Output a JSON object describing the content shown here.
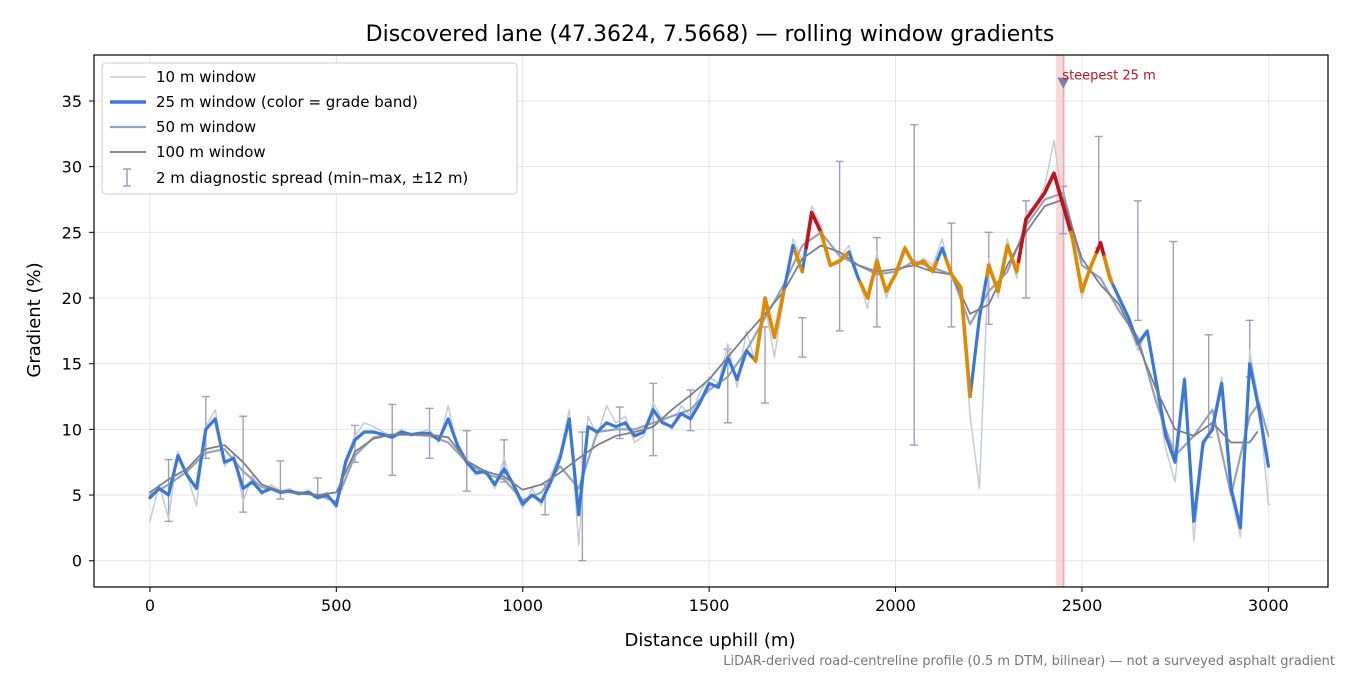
{
  "chart_data": {
    "type": "line",
    "title": "Discovered lane (47.3624, 7.5668) — rolling window gradients",
    "xlabel": "Distance uphill (m)",
    "ylabel": "Gradient (%)",
    "xlim": [
      -150,
      3160
    ],
    "ylim": [
      -2,
      38.5
    ],
    "xticks": [
      0,
      500,
      1000,
      1500,
      2000,
      2500,
      3000
    ],
    "yticks": [
      0,
      5,
      10,
      15,
      20,
      25,
      30,
      35
    ],
    "grid": true,
    "legend_position": "upper-left",
    "footer": "LiDAR-derived road-centreline profile (0.5 m DTM, bilinear) — not a surveyed asphalt gradient",
    "annotation": {
      "text": "steepest 25 m",
      "x": 2450,
      "y": 36.4,
      "band": [
        2430,
        2455
      ]
    },
    "grade_band_colors": {
      "lt20": "#3a78d8",
      "20to25": "#e08a00",
      "ge25": "#c1121f"
    },
    "series": [
      {
        "name": "10 m window",
        "color": "#c5ccd6",
        "width": 1.5,
        "x": [
          0,
          25,
          50,
          75,
          100,
          125,
          150,
          175,
          200,
          225,
          250,
          275,
          300,
          325,
          350,
          375,
          400,
          425,
          450,
          475,
          500,
          525,
          550,
          575,
          600,
          625,
          650,
          675,
          700,
          725,
          750,
          775,
          800,
          825,
          850,
          875,
          900,
          925,
          950,
          975,
          1000,
          1025,
          1050,
          1075,
          1100,
          1125,
          1150,
          1175,
          1200,
          1225,
          1250,
          1275,
          1300,
          1325,
          1350,
          1375,
          1400,
          1425,
          1450,
          1475,
          1500,
          1525,
          1550,
          1575,
          1600,
          1625,
          1650,
          1675,
          1700,
          1725,
          1750,
          1775,
          1800,
          1825,
          1850,
          1875,
          1900,
          1925,
          1950,
          1975,
          2000,
          2025,
          2050,
          2075,
          2100,
          2125,
          2150,
          2175,
          2200,
          2225,
          2250,
          2275,
          2300,
          2325,
          2350,
          2375,
          2400,
          2425,
          2450,
          2475,
          2500,
          2525,
          2550,
          2575,
          2600,
          2625,
          2650,
          2675,
          2700,
          2725,
          2750,
          2775,
          2800,
          2825,
          2850,
          2875,
          2900,
          2925,
          2950,
          2975,
          3000,
          3005
        ],
        "y": [
          3.0,
          5.8,
          3.2,
          8.3,
          6.5,
          4.2,
          10.2,
          11.5,
          7.2,
          8.0,
          4.5,
          6.5,
          5.0,
          5.8,
          5.3,
          5.5,
          5.0,
          5.4,
          4.7,
          5.2,
          4.0,
          7.8,
          9.5,
          10.5,
          10.2,
          9.8,
          9.5,
          10.0,
          9.5,
          9.8,
          10.0,
          9.0,
          11.8,
          8.6,
          7.5,
          6.5,
          6.8,
          5.5,
          7.8,
          5.5,
          4.0,
          5.5,
          4.2,
          6.5,
          8.2,
          11.5,
          1.2,
          11.0,
          9.5,
          11.8,
          10.5,
          11.0,
          9.0,
          9.5,
          12.0,
          10.8,
          10.0,
          11.8,
          11.0,
          12.8,
          14.0,
          13.5,
          16.5,
          13.2,
          17.5,
          15.0,
          19.5,
          15.5,
          20.0,
          24.5,
          22.8,
          27.0,
          25.5,
          22.5,
          23.0,
          24.0,
          21.5,
          19.2,
          23.5,
          20.0,
          21.8,
          24.0,
          22.5,
          23.0,
          22.5,
          24.5,
          21.5,
          20.5,
          11.0,
          5.5,
          23.0,
          20.0,
          24.5,
          21.5,
          26.5,
          27.0,
          28.5,
          32.0,
          27.0,
          25.0,
          20.0,
          22.5,
          24.0,
          22.0,
          19.5,
          18.0,
          16.0,
          17.5,
          13.0,
          8.5,
          6.0,
          14.0,
          1.5,
          8.5,
          10.5,
          14.0,
          5.0,
          1.8,
          16.0,
          12.0,
          4.3,
          4.3
        ]
      },
      {
        "name": "25 m window (color = grade band)",
        "color": "#3a78d8",
        "width": 3.2,
        "x": [
          0,
          25,
          50,
          75,
          100,
          125,
          150,
          175,
          200,
          225,
          250,
          275,
          300,
          325,
          350,
          375,
          400,
          425,
          450,
          475,
          500,
          525,
          550,
          575,
          600,
          625,
          650,
          675,
          700,
          725,
          750,
          775,
          800,
          825,
          850,
          875,
          900,
          925,
          950,
          975,
          1000,
          1025,
          1050,
          1075,
          1100,
          1125,
          1150,
          1175,
          1200,
          1225,
          1250,
          1275,
          1300,
          1325,
          1350,
          1375,
          1400,
          1425,
          1450,
          1475,
          1500,
          1525,
          1550,
          1575,
          1600,
          1625,
          1650,
          1675,
          1700,
          1725,
          1750,
          1775,
          1800,
          1825,
          1850,
          1875,
          1900,
          1925,
          1950,
          1975,
          2000,
          2025,
          2050,
          2075,
          2100,
          2125,
          2150,
          2175,
          2200,
          2225,
          2250,
          2275,
          2300,
          2325,
          2350,
          2375,
          2400,
          2425,
          2450,
          2475,
          2500,
          2525,
          2550,
          2575,
          2600,
          2625,
          2650,
          2675,
          2700,
          2725,
          2750,
          2775,
          2800,
          2825,
          2850,
          2875,
          2900,
          2925,
          2950,
          2975,
          3000
        ],
        "y": [
          4.8,
          5.5,
          5.0,
          8.0,
          6.5,
          5.5,
          10.0,
          10.8,
          7.5,
          7.8,
          5.5,
          6.0,
          5.2,
          5.5,
          5.2,
          5.3,
          5.1,
          5.2,
          4.8,
          5.0,
          4.2,
          7.5,
          9.2,
          9.8,
          9.8,
          9.6,
          9.4,
          9.8,
          9.6,
          9.7,
          9.7,
          9.2,
          10.8,
          8.8,
          7.5,
          6.7,
          6.8,
          5.8,
          7.0,
          5.8,
          4.3,
          5.0,
          4.5,
          6.0,
          7.8,
          10.8,
          3.5,
          10.2,
          9.8,
          10.5,
          10.2,
          10.5,
          9.5,
          9.8,
          11.5,
          10.5,
          10.2,
          11.2,
          10.8,
          12.0,
          13.5,
          13.2,
          15.5,
          13.8,
          16.0,
          15.2,
          20.0,
          17.0,
          20.5,
          24.0,
          22.0,
          26.5,
          25.0,
          22.5,
          22.8,
          23.5,
          21.5,
          20.0,
          22.8,
          20.5,
          21.8,
          23.8,
          22.5,
          22.8,
          22.0,
          23.8,
          21.8,
          20.8,
          12.5,
          18.5,
          22.5,
          20.5,
          24.0,
          22.0,
          26.0,
          27.0,
          28.0,
          29.5,
          27.0,
          24.5,
          20.5,
          22.5,
          24.2,
          21.5,
          20.0,
          18.5,
          16.5,
          17.5,
          13.5,
          9.5,
          7.5,
          13.8,
          3.0,
          9.0,
          10.0,
          13.5,
          5.5,
          2.5,
          15.0,
          11.5,
          7.2
        ]
      },
      {
        "name": "50 m window",
        "color": "#98a4b5",
        "width": 2.2,
        "x": [
          0,
          50,
          100,
          150,
          200,
          250,
          300,
          350,
          400,
          450,
          500,
          550,
          600,
          650,
          700,
          750,
          800,
          850,
          900,
          950,
          1000,
          1050,
          1100,
          1150,
          1200,
          1250,
          1300,
          1350,
          1400,
          1450,
          1500,
          1550,
          1600,
          1650,
          1700,
          1750,
          1800,
          1850,
          1900,
          1950,
          2000,
          2050,
          2100,
          2150,
          2200,
          2250,
          2300,
          2350,
          2400,
          2450,
          2500,
          2550,
          2600,
          2650,
          2700,
          2750,
          2800,
          2850,
          2900,
          2950,
          2975,
          3000
        ],
        "y": [
          5.0,
          5.8,
          6.8,
          8.2,
          8.5,
          6.8,
          5.6,
          5.3,
          5.2,
          5.0,
          4.5,
          8.0,
          9.4,
          9.6,
          9.6,
          9.5,
          9.0,
          7.5,
          6.6,
          6.2,
          4.6,
          5.2,
          7.2,
          5.5,
          9.8,
          10.0,
          10.0,
          10.5,
          11.0,
          11.5,
          13.0,
          14.0,
          16.0,
          18.5,
          21.0,
          24.0,
          25.0,
          23.2,
          22.5,
          21.8,
          22.0,
          22.8,
          22.3,
          21.8,
          18.0,
          20.5,
          22.0,
          25.5,
          27.5,
          28.0,
          22.5,
          21.5,
          19.0,
          17.0,
          12.0,
          8.0,
          9.5,
          11.5,
          5.0,
          11.0,
          12.0,
          9.5
        ]
      },
      {
        "name": "100 m window",
        "color": "#7a808a",
        "width": 1.8,
        "x": [
          0,
          50,
          100,
          150,
          200,
          250,
          300,
          350,
          400,
          450,
          500,
          550,
          600,
          650,
          700,
          750,
          800,
          850,
          900,
          950,
          1000,
          1050,
          1100,
          1150,
          1200,
          1250,
          1300,
          1350,
          1400,
          1450,
          1500,
          1550,
          1600,
          1650,
          1700,
          1750,
          1800,
          1850,
          1900,
          1950,
          2000,
          2050,
          2100,
          2150,
          2200,
          2250,
          2300,
          2350,
          2400,
          2450,
          2500,
          2550,
          2600,
          2650,
          2700,
          2750,
          2800,
          2850,
          2900,
          2950,
          2970
        ],
        "y": [
          5.2,
          6.2,
          7.0,
          8.5,
          8.8,
          7.5,
          5.8,
          5.3,
          5.1,
          5.0,
          5.2,
          8.3,
          9.3,
          9.6,
          9.6,
          9.6,
          9.4,
          7.6,
          6.8,
          6.4,
          5.4,
          5.8,
          6.7,
          7.8,
          8.8,
          9.5,
          9.8,
          10.2,
          11.5,
          12.6,
          13.8,
          15.5,
          17.2,
          18.8,
          20.5,
          23.0,
          24.0,
          23.5,
          22.5,
          22.0,
          22.2,
          22.5,
          22.0,
          21.8,
          18.8,
          19.5,
          22.5,
          25.0,
          27.0,
          27.5,
          23.0,
          21.0,
          19.5,
          16.5,
          13.0,
          10.0,
          9.5,
          10.5,
          9.0,
          9.0,
          9.8
        ]
      }
    ],
    "band_segments": [
      {
        "band": "20to25",
        "x": [
          1620,
          1700,
          1730,
          1750
        ]
      },
      {
        "band": "ge25",
        "x": [
          1760,
          1800
        ]
      },
      {
        "band": "20to25",
        "x": [
          1800,
          1870,
          1905,
          2110
        ]
      },
      {
        "band": "20to25",
        "x": [
          2135,
          2200,
          2245,
          2330
        ]
      },
      {
        "band": "ge25",
        "x": [
          2330,
          2470
        ]
      },
      {
        "band": "20to25",
        "x": [
          2470,
          2540
        ]
      },
      {
        "band": "ge25",
        "x": [
          2540,
          2560
        ]
      },
      {
        "band": "20to25",
        "x": [
          2560,
          2580
        ]
      }
    ],
    "error_bars": [
      {
        "x": 50,
        "low": 3.0,
        "high": 7.7
      },
      {
        "x": 150,
        "low": 7.8,
        "high": 12.5
      },
      {
        "x": 250,
        "low": 3.7,
        "high": 11.0
      },
      {
        "x": 350,
        "low": 4.7,
        "high": 7.6
      },
      {
        "x": 450,
        "low": 4.8,
        "high": 6.3
      },
      {
        "x": 550,
        "low": 7.5,
        "high": 10.3
      },
      {
        "x": 650,
        "low": 6.5,
        "high": 11.9
      },
      {
        "x": 750,
        "low": 7.8,
        "high": 11.6
      },
      {
        "x": 850,
        "low": 5.3,
        "high": 9.9
      },
      {
        "x": 950,
        "low": 6.0,
        "high": 9.2
      },
      {
        "x": 1060,
        "low": 3.5,
        "high": 5.8
      },
      {
        "x": 1160,
        "low": 0.0,
        "high": 9.8
      },
      {
        "x": 1260,
        "low": 9.3,
        "high": 11.7
      },
      {
        "x": 1350,
        "low": 8.0,
        "high": 13.5
      },
      {
        "x": 1450,
        "low": 9.9,
        "high": 13.0
      },
      {
        "x": 1550,
        "low": 10.5,
        "high": 16.1
      },
      {
        "x": 1650,
        "low": 12.0,
        "high": 17.8
      },
      {
        "x": 1750,
        "low": 15.5,
        "high": 18.5
      },
      {
        "x": 1850,
        "low": 17.5,
        "high": 30.4
      },
      {
        "x": 1950,
        "low": 17.8,
        "high": 24.6
      },
      {
        "x": 2050,
        "low": 8.8,
        "high": 33.2
      },
      {
        "x": 2150,
        "low": 17.8,
        "high": 25.7
      },
      {
        "x": 2250,
        "low": 18.0,
        "high": 25.0
      },
      {
        "x": 2350,
        "low": 20.0,
        "high": 27.4
      },
      {
        "x": 2450,
        "low": 24.9,
        "high": 28.5
      },
      {
        "x": 2545,
        "low": 23.8,
        "high": 32.3
      },
      {
        "x": 2650,
        "low": 18.3,
        "high": 27.4
      },
      {
        "x": 2745,
        "low": 8.3,
        "high": 24.3
      },
      {
        "x": 2840,
        "low": 9.4,
        "high": 17.2
      },
      {
        "x": 2950,
        "low": 14.0,
        "high": 18.3
      }
    ],
    "error_bar_series": {
      "name": "2 m diagnostic spread (min–max, ±12 m)",
      "color": "#a49cbf"
    }
  }
}
